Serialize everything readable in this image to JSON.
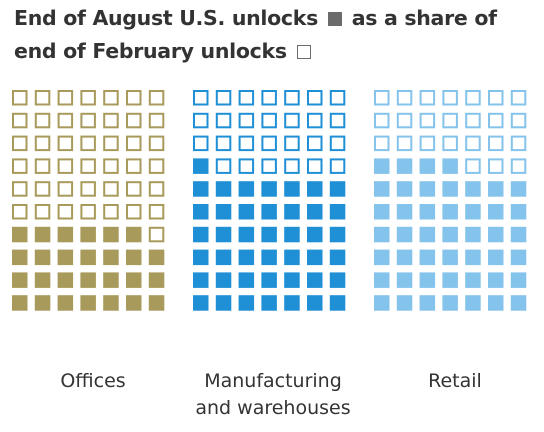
{
  "title": {
    "part1": "End of August U.S. unlocks",
    "part2": "as a share of",
    "part3": "end of February unlocks"
  },
  "chart_data": {
    "type": "waffle",
    "title": "End of August U.S. unlocks as a share of end of February unlocks",
    "grid": {
      "rows": 10,
      "cols": 7,
      "total": 70
    },
    "legend": [
      {
        "label": "End of August U.S. unlocks",
        "style": "filled"
      },
      {
        "label": "end of February unlocks",
        "style": "outline"
      }
    ],
    "panels": [
      {
        "label_lines": [
          "Offices"
        ],
        "filled": 27,
        "total": 70,
        "color": "#a89a5a"
      },
      {
        "label_lines": [
          "Manufacturing",
          "and warehouses"
        ],
        "filled": 43,
        "total": 70,
        "color": "#1f8fd6"
      },
      {
        "label_lines": [
          "Retail"
        ],
        "filled": 46,
        "total": 70,
        "color": "#84c3ec"
      }
    ]
  }
}
